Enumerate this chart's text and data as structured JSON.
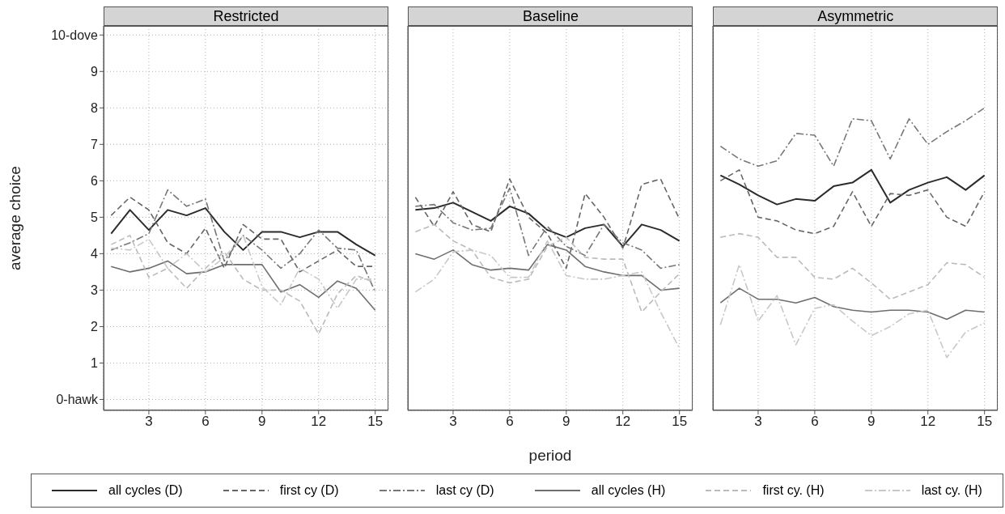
{
  "chart_data": [
    {
      "type": "line",
      "title": "Restricted",
      "ylabel": "average choice",
      "x": [
        1,
        2,
        3,
        4,
        5,
        6,
        7,
        8,
        9,
        10,
        11,
        12,
        13,
        14,
        15
      ],
      "xlim": [
        0.6,
        15.7
      ],
      "xticks": [
        3,
        6,
        9,
        12,
        15
      ],
      "ylim": [
        -0.3,
        10.25
      ],
      "yticks": [
        {
          "value": 0,
          "label": "0-hawk"
        },
        1,
        2,
        3,
        4,
        5,
        6,
        7,
        8,
        9,
        {
          "value": 10,
          "label": "10-dove"
        }
      ],
      "grid": true,
      "legend": "bottom",
      "series": [
        {
          "name": "all cycles (D)",
          "color": "#2b2b2b",
          "line_style": "solid",
          "values": [
            4.55,
            5.2,
            4.65,
            5.2,
            5.05,
            5.25,
            4.6,
            4.1,
            4.6,
            4.6,
            4.45,
            4.6,
            4.6,
            4.25,
            3.95
          ]
        },
        {
          "name": "first cy (D)",
          "color": "#666666",
          "line_style": "dashed",
          "values": [
            5.05,
            5.55,
            5.2,
            4.3,
            4.0,
            4.7,
            3.6,
            4.8,
            4.4,
            4.4,
            3.5,
            3.8,
            4.1,
            3.65,
            3.65
          ]
        },
        {
          "name": "last cy (D)",
          "color": "#777777",
          "line_style": "dashdot",
          "values": [
            4.1,
            4.3,
            4.55,
            5.75,
            5.3,
            5.5,
            3.8,
            4.5,
            4.1,
            3.6,
            4.0,
            4.65,
            4.15,
            4.1,
            2.95
          ]
        },
        {
          "name": "all cycles (H)",
          "color": "#6e6e6e",
          "line_style": "solid",
          "values": [
            3.65,
            3.5,
            3.6,
            3.8,
            3.45,
            3.5,
            3.7,
            3.7,
            3.7,
            2.95,
            3.15,
            2.8,
            3.25,
            3.05,
            2.45
          ]
        },
        {
          "name": "first cy. (H)",
          "color": "#bbbbbb",
          "line_style": "dashed",
          "values": [
            4.25,
            4.5,
            3.35,
            3.6,
            3.05,
            3.6,
            4.05,
            3.3,
            3.0,
            3.0,
            2.7,
            1.8,
            2.9,
            3.4,
            3.2
          ]
        },
        {
          "name": "last cy. (H)",
          "color": "#c8c8c8",
          "line_style": "dashdot",
          "values": [
            4.15,
            4.1,
            4.4,
            3.6,
            4.0,
            3.5,
            3.9,
            4.5,
            3.1,
            2.6,
            3.6,
            3.3,
            2.5,
            3.3,
            3.3
          ]
        }
      ]
    },
    {
      "type": "line",
      "title": "Baseline",
      "xlabel": "period",
      "x": [
        1,
        2,
        3,
        4,
        5,
        6,
        7,
        8,
        9,
        10,
        11,
        12,
        13,
        14,
        15
      ],
      "xlim": [
        0.6,
        15.7
      ],
      "xticks": [
        3,
        6,
        9,
        12,
        15
      ],
      "ylim": [
        -0.3,
        10.25
      ],
      "yticks": [
        0,
        1,
        2,
        3,
        4,
        5,
        6,
        7,
        8,
        9,
        10
      ],
      "grid": true,
      "tick_labels": "x",
      "series": [
        {
          "color": "#2b2b2b",
          "line_style": "solid",
          "values": [
            5.2,
            5.25,
            5.4,
            5.15,
            4.9,
            5.3,
            5.1,
            4.65,
            4.45,
            4.7,
            4.8,
            4.2,
            4.8,
            4.65,
            4.35
          ]
        },
        {
          "color": "#666666",
          "line_style": "dashed",
          "values": [
            5.55,
            4.75,
            5.7,
            4.8,
            4.6,
            6.05,
            5.0,
            4.55,
            3.6,
            5.65,
            5.0,
            4.15,
            5.9,
            6.05,
            4.95
          ]
        },
        {
          "color": "#777777",
          "line_style": "dashdot",
          "values": [
            5.3,
            5.35,
            4.85,
            4.65,
            4.7,
            5.8,
            3.95,
            4.75,
            4.2,
            3.95,
            4.8,
            4.3,
            4.1,
            3.6,
            3.7
          ]
        },
        {
          "color": "#6e6e6e",
          "line_style": "solid",
          "values": [
            4.0,
            3.85,
            4.1,
            3.7,
            3.55,
            3.6,
            3.55,
            4.25,
            4.1,
            3.65,
            3.5,
            3.4,
            3.4,
            3.0,
            3.05
          ]
        },
        {
          "color": "#bbbbbb",
          "line_style": "dashed",
          "values": [
            4.6,
            4.8,
            4.35,
            4.1,
            3.35,
            3.2,
            3.3,
            4.2,
            4.45,
            3.9,
            3.85,
            3.85,
            2.4,
            2.95,
            3.45
          ]
        },
        {
          "color": "#c8c8c8",
          "line_style": "dashdot",
          "values": [
            2.95,
            3.3,
            4.05,
            4.1,
            3.95,
            3.35,
            3.35,
            4.35,
            3.4,
            3.3,
            3.3,
            3.4,
            3.5,
            2.4,
            1.4
          ]
        }
      ]
    },
    {
      "type": "line",
      "title": "Asymmetric",
      "x": [
        1,
        2,
        3,
        4,
        5,
        6,
        7,
        8,
        9,
        10,
        11,
        12,
        13,
        14,
        15
      ],
      "xlim": [
        0.6,
        15.7
      ],
      "xticks": [
        3,
        6,
        9,
        12,
        15
      ],
      "ylim": [
        -0.3,
        10.25
      ],
      "yticks": [
        0,
        1,
        2,
        3,
        4,
        5,
        6,
        7,
        8,
        9,
        10
      ],
      "grid": true,
      "tick_labels": "x",
      "series": [
        {
          "color": "#2b2b2b",
          "line_style": "solid",
          "values": [
            6.15,
            5.9,
            5.6,
            5.35,
            5.5,
            5.45,
            5.85,
            5.95,
            6.3,
            5.4,
            5.75,
            5.95,
            6.1,
            5.75,
            6.15
          ]
        },
        {
          "color": "#666666",
          "line_style": "dashed",
          "values": [
            6.0,
            6.3,
            5.0,
            4.9,
            4.65,
            4.55,
            4.75,
            5.7,
            4.75,
            5.65,
            5.6,
            5.75,
            5.0,
            4.75,
            5.7
          ]
        },
        {
          "color": "#777777",
          "line_style": "dashdot",
          "values": [
            6.95,
            6.6,
            6.4,
            6.55,
            7.3,
            7.25,
            6.4,
            7.7,
            7.65,
            6.6,
            7.7,
            7.0,
            7.35,
            7.65,
            8.0
          ]
        },
        {
          "color": "#6e6e6e",
          "line_style": "solid",
          "values": [
            2.65,
            3.05,
            2.75,
            2.75,
            2.65,
            2.8,
            2.55,
            2.45,
            2.4,
            2.45,
            2.45,
            2.4,
            2.2,
            2.45,
            2.4
          ]
        },
        {
          "color": "#bbbbbb",
          "line_style": "dashed",
          "values": [
            4.45,
            4.55,
            4.45,
            3.9,
            3.9,
            3.35,
            3.3,
            3.6,
            3.2,
            2.75,
            2.95,
            3.15,
            3.75,
            3.7,
            3.35
          ]
        },
        {
          "color": "#c8c8c8",
          "line_style": "dashdot",
          "values": [
            2.05,
            3.7,
            2.15,
            2.85,
            1.5,
            2.5,
            2.6,
            2.15,
            1.75,
            2.0,
            2.35,
            2.45,
            1.15,
            1.85,
            2.1
          ]
        }
      ]
    }
  ]
}
